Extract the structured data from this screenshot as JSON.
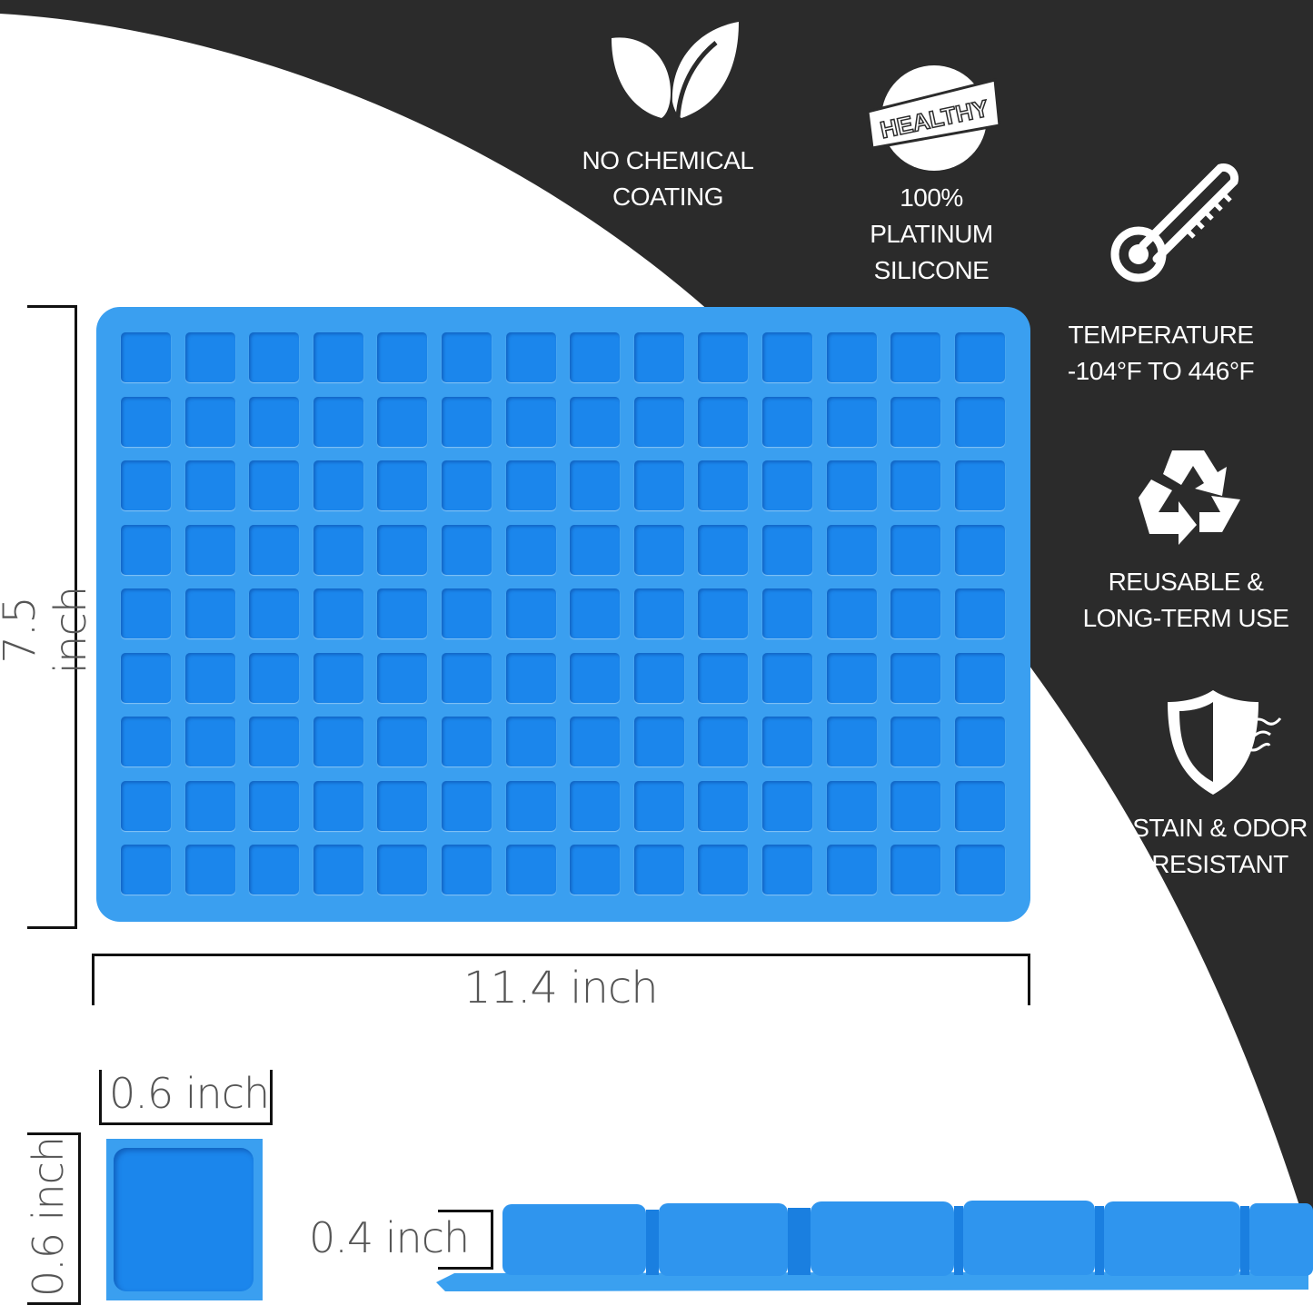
{
  "features": [
    {
      "icon": "leaf-icon",
      "lines": [
        "NO CHEMICAL",
        "COATING"
      ]
    },
    {
      "icon": "healthy-badge-icon",
      "badge_text": "HEALTHY",
      "lines": [
        "100%",
        "PLATINUM",
        "SILICONE"
      ]
    },
    {
      "icon": "thermometer-icon",
      "lines": [
        "TEMPERATURE",
        "-104°F TO 446°F"
      ]
    },
    {
      "icon": "recycle-icon",
      "lines": [
        "REUSABLE &",
        "LONG-TERM USE"
      ]
    },
    {
      "icon": "shield-icon",
      "lines": [
        "STAIN & ODOR",
        "RESISTANT"
      ]
    }
  ],
  "tray": {
    "rows": 9,
    "columns": 14,
    "color": "#3a9ff0",
    "cell_color": "#1b86ec"
  },
  "dimensions": {
    "height": "7.5 inch",
    "width": "11.4 inch",
    "cell_width": "0.6 inch",
    "cell_height": "0.6 inch",
    "depth": "0.4 inch"
  },
  "colors": {
    "dark_background": "#2b2b2b"
  }
}
